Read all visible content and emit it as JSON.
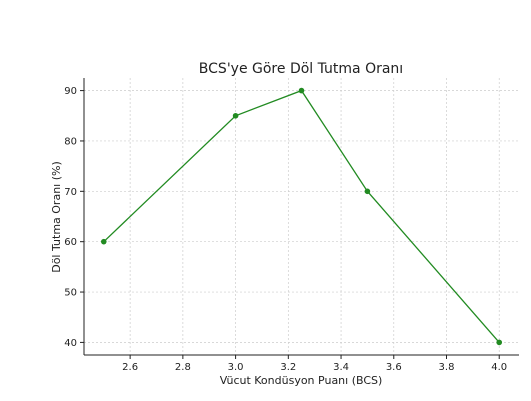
{
  "chart_data": {
    "type": "line",
    "title": "BCS'ye Göre Döl Tutma Oranı",
    "x_label": "Vücut Kondüsyon Puanı (BCS)",
    "y_label": "Döl Tutma Oranı (%)",
    "x": [
      2.5,
      3.0,
      3.25,
      3.5,
      4.0
    ],
    "series": [
      {
        "color": "#228b22",
        "values": [
          60,
          85,
          90,
          70,
          40
        ]
      }
    ],
    "xlim": [
      2.425,
      4.075
    ],
    "ylim": [
      37.5,
      92.5
    ],
    "xticks": [
      {
        "value": 2.6,
        "label": "2.6"
      },
      {
        "value": 2.8,
        "label": "2.8"
      },
      {
        "value": 3.0,
        "label": "3.0"
      },
      {
        "value": 3.2,
        "label": "3.2"
      },
      {
        "value": 3.4,
        "label": "3.4"
      },
      {
        "value": 3.6,
        "label": "3.6"
      },
      {
        "value": 3.8,
        "label": "3.8"
      },
      {
        "value": 4.0,
        "label": "4.0"
      }
    ],
    "yticks": [
      40,
      50,
      60,
      70,
      80,
      90
    ],
    "grid": true
  }
}
